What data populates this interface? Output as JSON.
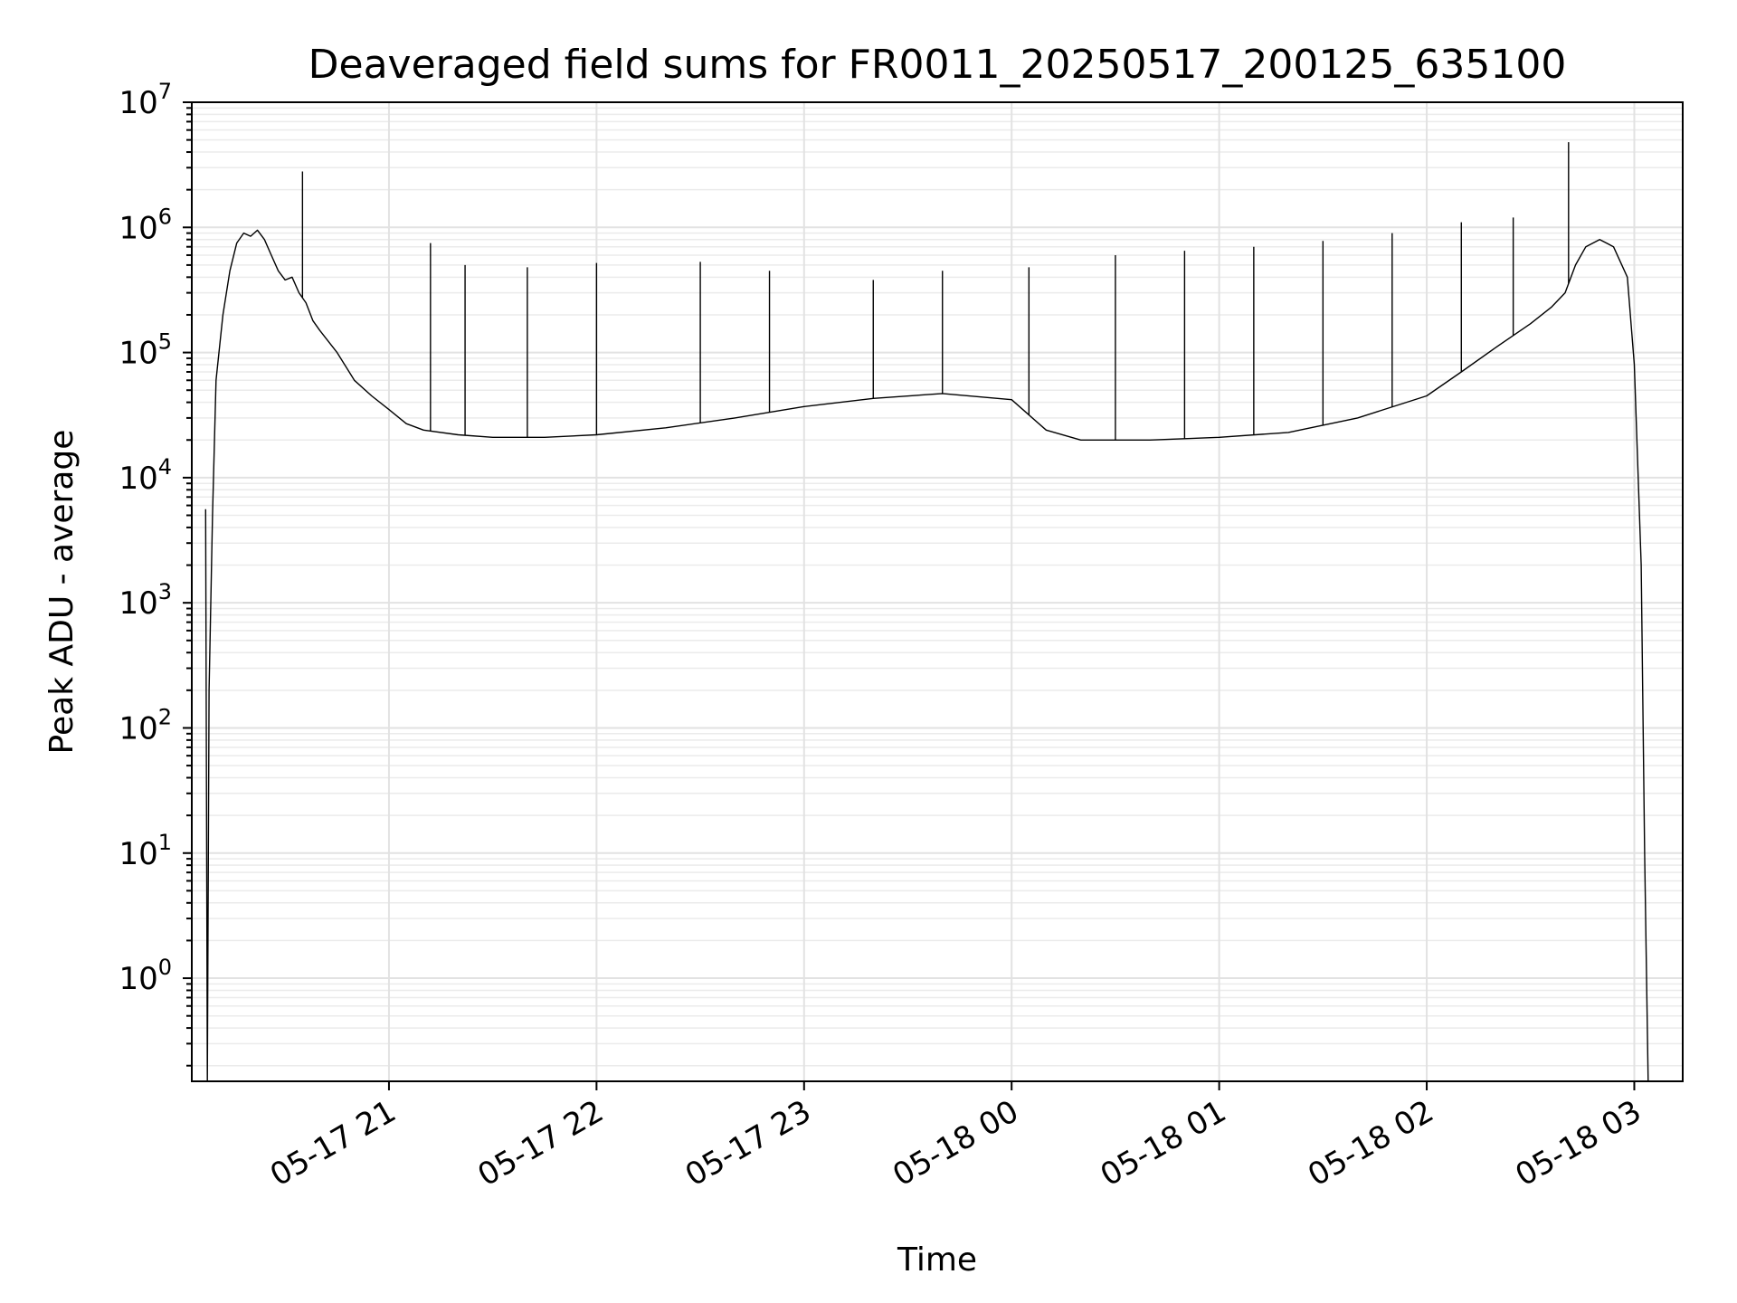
{
  "chart_data": {
    "type": "line",
    "title": "Deaveraged field sums for FR0011_20250517_200125_635100",
    "xlabel": "Time",
    "ylabel": "Peak ADU - average",
    "yscale": "log",
    "ylim": [
      0.15,
      10000000
    ],
    "xlim": [
      "2025-05-17 20:03",
      "2025-05-18 03:14"
    ],
    "grid": true,
    "x_tick_labels": [
      "05-17 21",
      "05-17 22",
      "05-17 23",
      "05-18 00",
      "05-18 01",
      "05-18 02",
      "05-18 03"
    ],
    "x_ticks": [
      "2025-05-17 21:00",
      "2025-05-17 22:00",
      "2025-05-17 23:00",
      "2025-05-18 00:00",
      "2025-05-18 01:00",
      "2025-05-18 02:00",
      "2025-05-18 03:00"
    ],
    "y_tick_labels": [
      {
        "base": "10",
        "exp": "0"
      },
      {
        "base": "10",
        "exp": "1"
      },
      {
        "base": "10",
        "exp": "2"
      },
      {
        "base": "10",
        "exp": "3"
      },
      {
        "base": "10",
        "exp": "4"
      },
      {
        "base": "10",
        "exp": "5"
      },
      {
        "base": "10",
        "exp": "6"
      },
      {
        "base": "10",
        "exp": "7"
      }
    ],
    "series": [
      {
        "color": "#000000",
        "x": [
          "2025-05-17 20:07",
          "2025-05-17 20:07:30",
          "2025-05-17 20:08",
          "2025-05-17 20:09",
          "2025-05-17 20:10",
          "2025-05-17 20:12",
          "2025-05-17 20:14",
          "2025-05-17 20:16",
          "2025-05-17 20:18",
          "2025-05-17 20:20",
          "2025-05-17 20:22",
          "2025-05-17 20:24",
          "2025-05-17 20:26",
          "2025-05-17 20:28",
          "2025-05-17 20:30",
          "2025-05-17 20:32",
          "2025-05-17 20:34",
          "2025-05-17 20:36",
          "2025-05-17 20:38",
          "2025-05-17 20:40",
          "2025-05-17 20:45",
          "2025-05-17 20:50",
          "2025-05-17 20:55",
          "2025-05-17 21:00",
          "2025-05-17 21:05",
          "2025-05-17 21:10",
          "2025-05-17 21:20",
          "2025-05-17 21:30",
          "2025-05-17 21:45",
          "2025-05-17 22:00",
          "2025-05-17 22:20",
          "2025-05-17 22:40",
          "2025-05-17 23:00",
          "2025-05-17 23:20",
          "2025-05-17 23:40",
          "2025-05-18 00:00",
          "2025-05-18 00:10",
          "2025-05-18 00:20",
          "2025-05-18 00:40",
          "2025-05-18 01:00",
          "2025-05-18 01:20",
          "2025-05-18 01:40",
          "2025-05-18 02:00",
          "2025-05-18 02:10",
          "2025-05-18 02:20",
          "2025-05-18 02:30",
          "2025-05-18 02:36",
          "2025-05-18 02:40",
          "2025-05-18 02:43",
          "2025-05-18 02:46",
          "2025-05-18 02:50",
          "2025-05-18 02:54",
          "2025-05-18 02:58",
          "2025-05-18 03:00",
          "2025-05-18 03:02",
          "2025-05-18 03:03",
          "2025-05-18 03:04"
        ],
        "y": [
          5600,
          0.15,
          200,
          5000,
          60000,
          200000,
          450000,
          750000,
          900000,
          850000,
          950000,
          800000,
          600000,
          450000,
          380000,
          400000,
          300000,
          250000,
          180000,
          150000,
          100000,
          60000,
          45000,
          35000,
          27000,
          24000,
          22000,
          21000,
          21000,
          22000,
          25000,
          30000,
          37000,
          43000,
          47000,
          42000,
          24000,
          20000,
          20000,
          21000,
          23000,
          30000,
          45000,
          70000,
          110000,
          170000,
          230000,
          300000,
          500000,
          700000,
          800000,
          700000,
          400000,
          80000,
          2000,
          10,
          0.15
        ]
      }
    ],
    "spikes": [
      {
        "x": "2025-05-17 20:35",
        "y": 2800000
      },
      {
        "x": "2025-05-17 21:12",
        "y": 750000
      },
      {
        "x": "2025-05-17 21:22",
        "y": 500000
      },
      {
        "x": "2025-05-17 21:40",
        "y": 480000
      },
      {
        "x": "2025-05-17 22:00",
        "y": 520000
      },
      {
        "x": "2025-05-17 22:30",
        "y": 530000
      },
      {
        "x": "2025-05-17 22:50",
        "y": 450000
      },
      {
        "x": "2025-05-17 23:20",
        "y": 380000
      },
      {
        "x": "2025-05-17 23:40",
        "y": 450000
      },
      {
        "x": "2025-05-18 00:05",
        "y": 480000
      },
      {
        "x": "2025-05-18 00:30",
        "y": 600000
      },
      {
        "x": "2025-05-18 00:50",
        "y": 650000
      },
      {
        "x": "2025-05-18 01:10",
        "y": 700000
      },
      {
        "x": "2025-05-18 01:30",
        "y": 780000
      },
      {
        "x": "2025-05-18 01:50",
        "y": 900000
      },
      {
        "x": "2025-05-18 02:10",
        "y": 1100000
      },
      {
        "x": "2025-05-18 02:25",
        "y": 1200000
      },
      {
        "x": "2025-05-18 02:41",
        "y": 4800000
      }
    ]
  }
}
